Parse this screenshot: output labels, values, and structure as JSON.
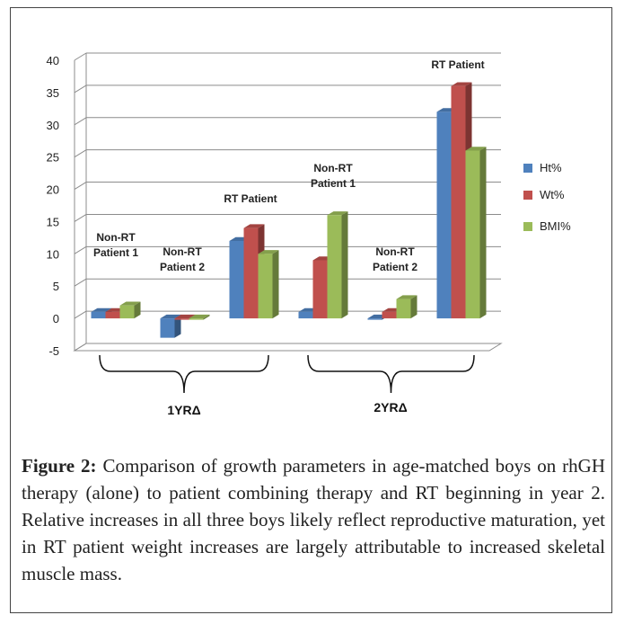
{
  "chart_data": {
    "type": "bar",
    "groups": [
      {
        "label": [
          "Non-RT",
          "Patient 1"
        ],
        "period": "1YRΔ"
      },
      {
        "label": [
          "Non-RT",
          "Patient 2"
        ],
        "period": "1YRΔ"
      },
      {
        "label": [
          "RT Patient"
        ],
        "period": "1YRΔ"
      },
      {
        "label": [
          "Non-RT",
          "Patient 1"
        ],
        "period": "2YRΔ"
      },
      {
        "label": [
          "Non-RT",
          "Patient 2"
        ],
        "period": "2YRΔ"
      },
      {
        "label": [
          "RT Patient"
        ],
        "period": "2YRΔ"
      }
    ],
    "series": [
      {
        "name": "Ht%",
        "color": "#4f81bd",
        "values": [
          1,
          -3,
          12,
          1,
          0,
          32
        ]
      },
      {
        "name": "Wt%",
        "color": "#c0504d",
        "values": [
          1,
          0,
          14,
          9,
          1,
          36
        ]
      },
      {
        "name": "BMI%",
        "color": "#9bbb59",
        "values": [
          2,
          0,
          10,
          16,
          3,
          26
        ]
      }
    ],
    "y_ticks": [
      "40",
      "35",
      "30",
      "25",
      "20",
      "15",
      "10",
      "5",
      "0",
      "-5"
    ],
    "ylim": [
      -5,
      40
    ],
    "period_labels": [
      "1YRΔ",
      "2YRΔ"
    ],
    "legend_position": "right"
  },
  "caption": {
    "label": "Figure 2:",
    "text": " Comparison of growth parameters in age-matched boys on rhGH therapy (alone) to patient combining therapy and RT beginning in year 2. Relative increases in all three boys likely reflect reproductive maturation, yet in RT patient weight increases are largely attributable to increased skeletal muscle mass."
  }
}
